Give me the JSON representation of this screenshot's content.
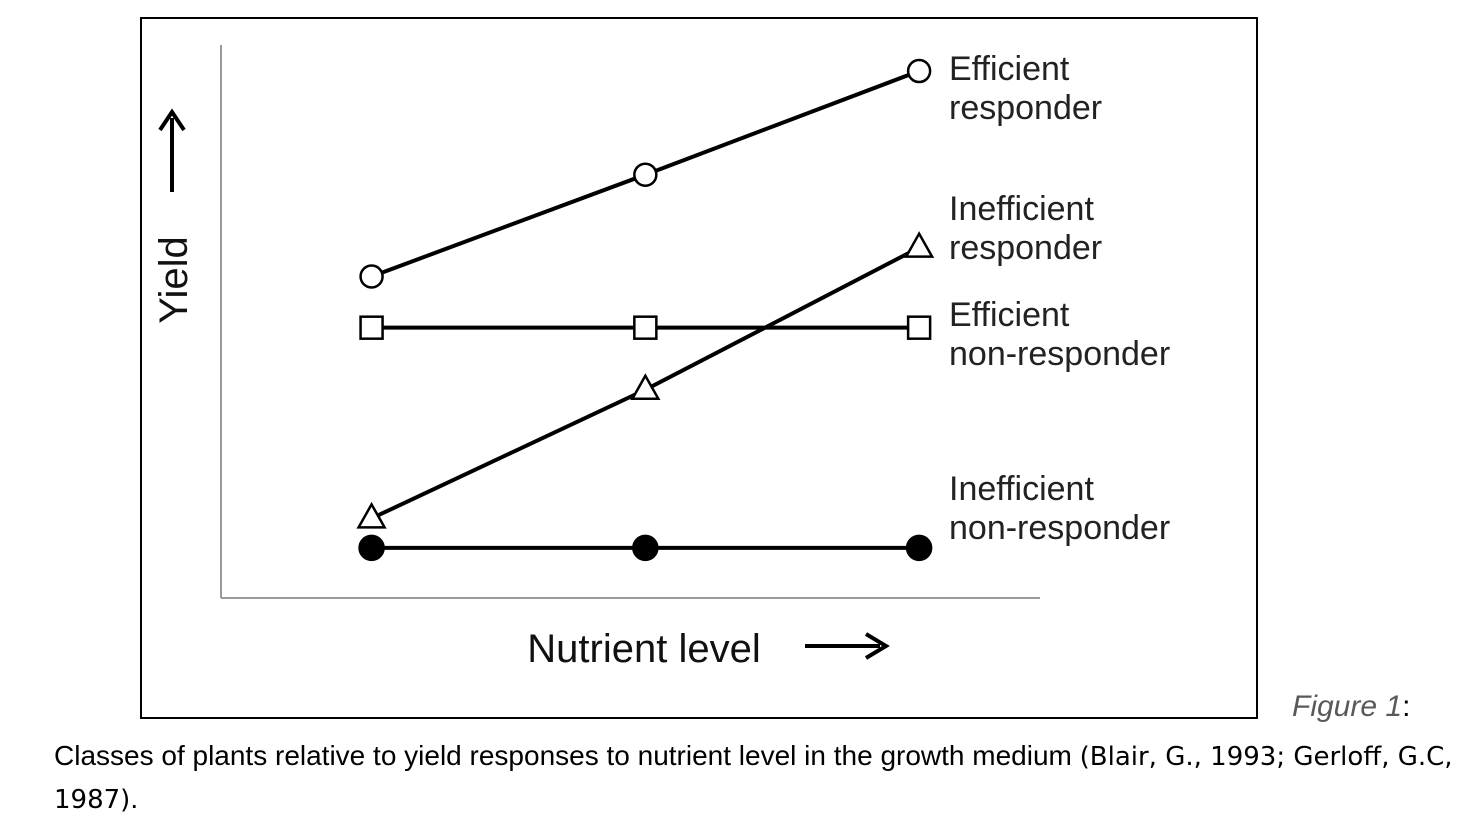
{
  "chart_data": {
    "type": "line",
    "title": "",
    "xlabel": "Nutrient level",
    "ylabel": "Yield",
    "x": [
      1,
      2,
      3
    ],
    "xlim": [
      0.45,
      3.5
    ],
    "ylim": [
      0,
      10
    ],
    "grid": false,
    "legend_placement": "right",
    "series": [
      {
        "name": "Efficient responder",
        "label_lines": [
          "Efficient",
          "responder"
        ],
        "marker": "open-circle",
        "values": [
          5.68,
          7.27,
          8.89
        ]
      },
      {
        "name": "Inefficient responder",
        "label_lines": [
          "Inefficient",
          "responder"
        ],
        "marker": "open-triangle",
        "values": [
          1.9,
          3.91,
          6.13
        ]
      },
      {
        "name": "Efficient non-responder",
        "label_lines": [
          "Efficient",
          "non-responder"
        ],
        "marker": "open-square",
        "values": [
          4.88,
          4.88,
          4.88
        ]
      },
      {
        "name": "Inefficient non-responder",
        "label_lines": [
          "Inefficient",
          "non-responder"
        ],
        "marker": "filled-circle",
        "values": [
          1.44,
          1.44,
          1.44
        ]
      }
    ]
  },
  "caption": {
    "figure_label": "Figure 1",
    "figure_suffix": ":",
    "text": "Classes of plants relative to yield responses to nutrient level in the growth medium ",
    "citation": "(Blair, G., 1993; Gerloff, G.C, 1987)",
    "end": "."
  }
}
